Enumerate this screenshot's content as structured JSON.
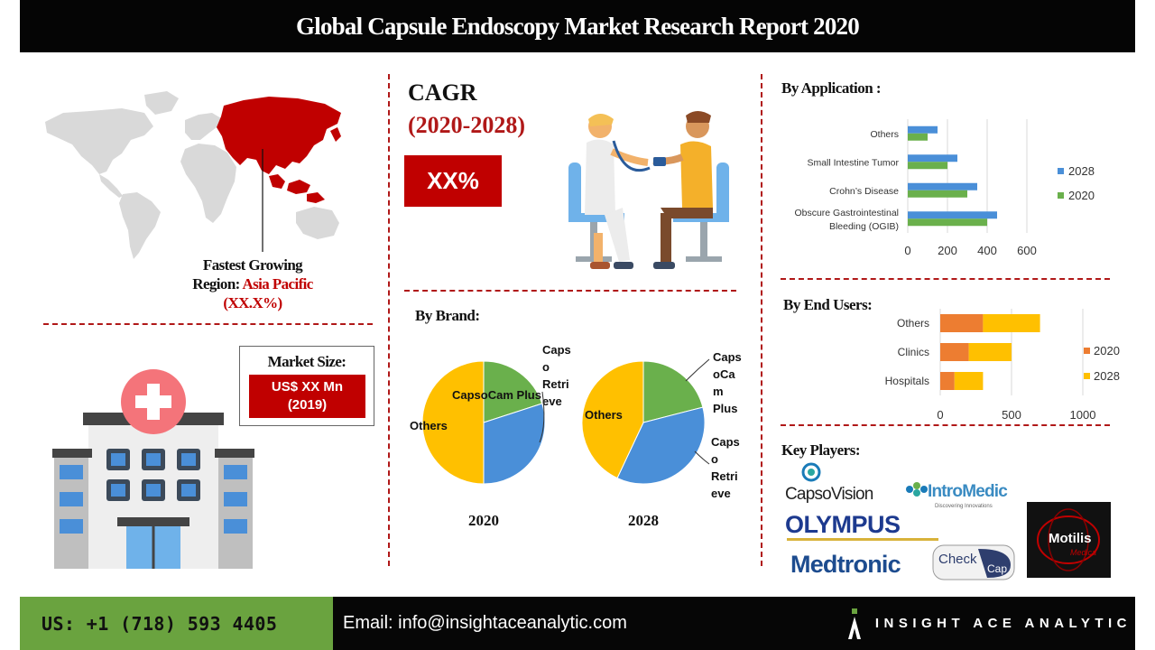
{
  "title": "Global Capsule Endoscopy Market Research Report 2020",
  "region": {
    "line1": "Fastest Growing",
    "label_prefix": "Region: ",
    "name": "Asia Pacific",
    "value": "(XX.X%)"
  },
  "market_size": {
    "label": "Market Size:",
    "value_line1": "US$ XX Mn",
    "value_line2": "(2019)"
  },
  "cagr": {
    "label": "CAGR",
    "period": "(2020-2028)",
    "value": "XX%"
  },
  "sections": {
    "by_brand": "By Brand:",
    "by_application": "By Application :",
    "by_end_users": "By End Users:",
    "key_players": "Key Players:"
  },
  "colors": {
    "accent_red": "#c00000",
    "dark": "#050505",
    "green_footer": "#6aa33f",
    "series_2028_app": "#4a8fd8",
    "series_2020_app": "#6ab04c",
    "series_2020_end": "#ed7d31",
    "series_2028_end": "#ffc000",
    "pie_others": "#ffc000",
    "pie_capsocam": "#6ab04c",
    "pie_retrieve": "#4a8fd8"
  },
  "chart_data": [
    {
      "type": "pie",
      "title": "2020",
      "labels": [
        "CapsoCam Plus",
        "Capso Retrieve",
        "Others"
      ],
      "label_lines": [
        [
          "CapsoCam Plus"
        ],
        [
          "Caps",
          "o",
          "Retri",
          "eve"
        ],
        [
          "Others"
        ]
      ],
      "values": [
        20,
        30,
        50
      ]
    },
    {
      "type": "pie",
      "title": "2028",
      "labels": [
        "CapsoCam Plus",
        "Capso Retrieve",
        "Others"
      ],
      "label_lines": [
        [
          "Caps",
          "oCa",
          "m",
          "Plus"
        ],
        [
          "Caps",
          "o",
          "Retri",
          "eve"
        ],
        [
          "Others"
        ]
      ],
      "values": [
        21,
        36,
        43
      ]
    },
    {
      "type": "bar",
      "orientation": "horizontal",
      "categories": [
        "Obscure Gastrointestinal Bleeding (OGIB)",
        "Crohn's Disease",
        "Small Intestine Tumor",
        "Others"
      ],
      "category_lines": [
        [
          "Obscure Gastrointestinal",
          "Bleeding (OGIB)"
        ],
        [
          "Crohn’s Disease"
        ],
        [
          "Small Intestine Tumor"
        ],
        [
          "Others"
        ]
      ],
      "series": [
        {
          "name": "2028",
          "values": [
            450,
            350,
            250,
            150
          ]
        },
        {
          "name": "2020",
          "values": [
            400,
            300,
            200,
            100
          ]
        }
      ],
      "xlim": [
        0,
        600
      ],
      "xticks": [
        "0",
        "200",
        "400",
        "600"
      ],
      "grid": true,
      "legend": "right"
    },
    {
      "type": "bar",
      "orientation": "horizontal",
      "stacked": true,
      "categories": [
        "Hospitals",
        "Clinics",
        "Others"
      ],
      "series": [
        {
          "name": "2020",
          "values": [
            100,
            200,
            300
          ]
        },
        {
          "name": "2028",
          "values": [
            200,
            300,
            400
          ]
        }
      ],
      "xlim": [
        0,
        1000
      ],
      "xticks": [
        "0",
        "500",
        "1000"
      ],
      "grid": true,
      "legend": "right"
    }
  ],
  "pie_years": [
    "2020",
    "2028"
  ],
  "key_players": {
    "capsovision": "CapsoVision",
    "intromedic": "IntroMedic",
    "intromedic_tag": "Discovering Innovations",
    "olympus": "OLYMPUS",
    "medtronic": "Medtronic",
    "checkcap_1": "Check",
    "checkcap_2": "Cap",
    "motilis": "Motilis",
    "motilis_sub": "Medica"
  },
  "footer": {
    "phone": "US: +1 (718) 593 4405",
    "email": "Email: info@insightaceanalytic.com",
    "brand": "INSIGHT ACE ANALYTIC"
  }
}
